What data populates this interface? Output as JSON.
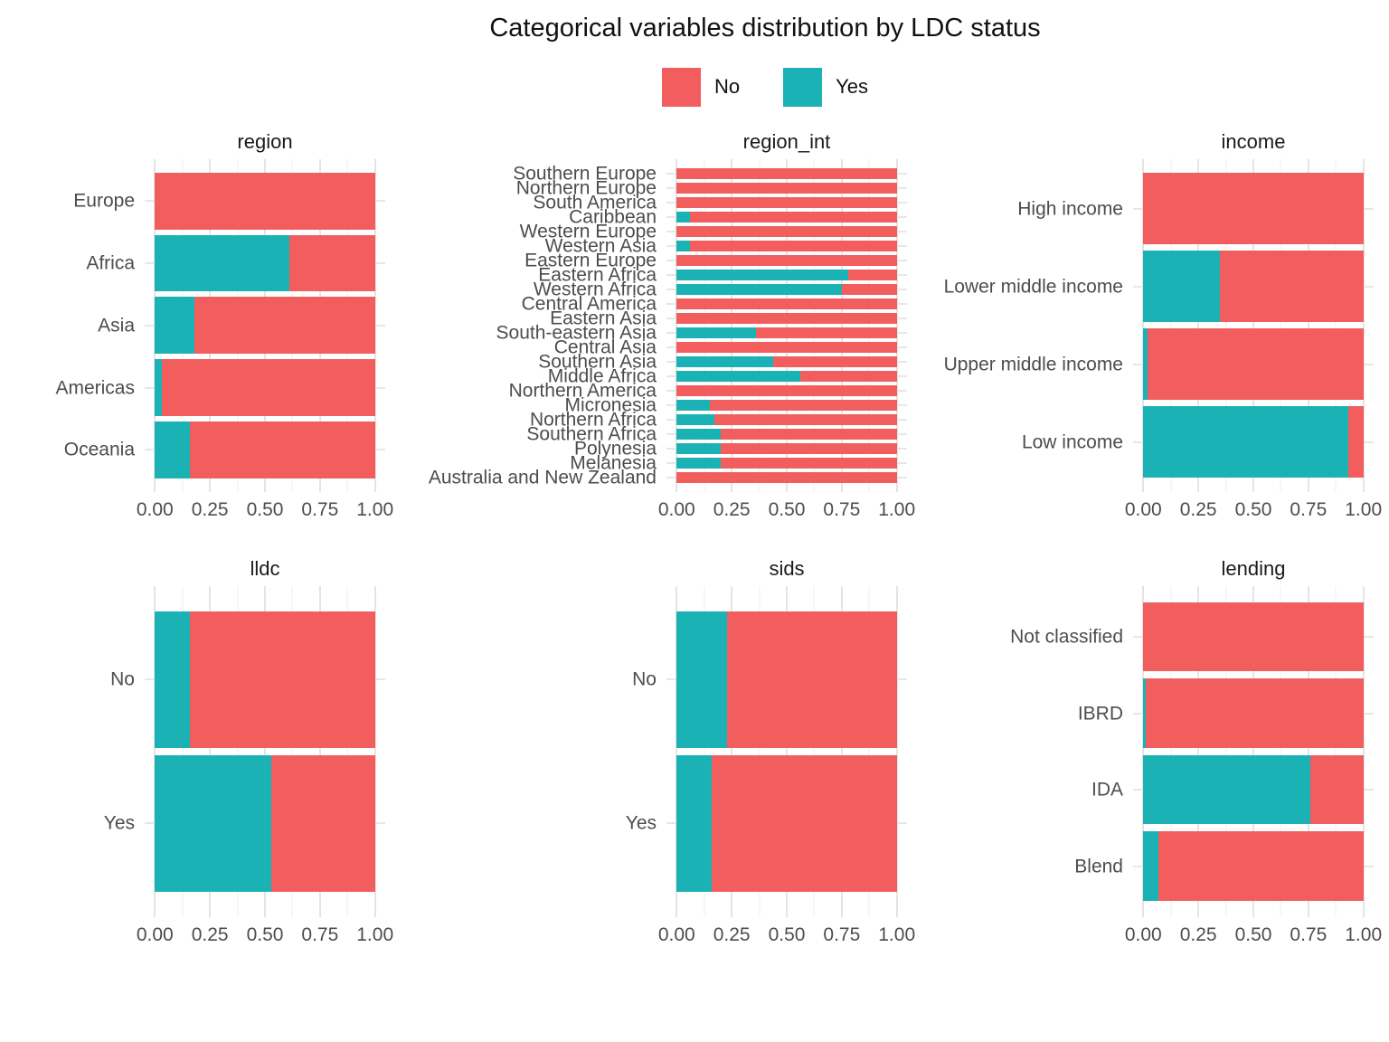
{
  "title": "Categorical variables distribution by LDC status",
  "legend": {
    "position": "top-center",
    "items": [
      {
        "label": "No",
        "color": "#F25E5E"
      },
      {
        "label": "Yes",
        "color": "#1AB2B5"
      }
    ]
  },
  "x_axis": {
    "ticks": [
      "0.00",
      "0.25",
      "0.50",
      "0.75",
      "1.00"
    ],
    "values": [
      0,
      0.25,
      0.5,
      0.75,
      1
    ],
    "range": [
      0,
      1
    ]
  },
  "style": {
    "background": "#FFFFFF",
    "major_gridline_color": "#E4E4E4",
    "minor_gridline_color": "#EFEFEF",
    "axis_text_color": "#4D4D4D"
  },
  "chart_data": [
    {
      "type": "bar",
      "orientation": "horizontal",
      "stacked": true,
      "normalized": true,
      "facet": "region",
      "xlim": [
        0,
        1
      ],
      "grid": true,
      "categories": [
        "Europe",
        "Africa",
        "Asia",
        "Americas",
        "Oceania"
      ],
      "series": [
        {
          "name": "Yes",
          "values": [
            0.0,
            0.61,
            0.18,
            0.03,
            0.16
          ]
        },
        {
          "name": "No",
          "values": [
            1.0,
            0.39,
            0.82,
            0.97,
            0.84
          ]
        }
      ]
    },
    {
      "type": "bar",
      "orientation": "horizontal",
      "stacked": true,
      "normalized": true,
      "facet": "region_int",
      "xlim": [
        0,
        1
      ],
      "grid": true,
      "categories": [
        "Southern Europe",
        "Northern Europe",
        "South America",
        "Caribbean",
        "Western Europe",
        "Western Asia",
        "Eastern Europe",
        "Eastern Africa",
        "Western Africa",
        "Central America",
        "Eastern Asia",
        "South-eastern Asia",
        "Central Asia",
        "Southern Asia",
        "Middle Africa",
        "Northern America",
        "Micronesia",
        "Northern Africa",
        "Southern Africa",
        "Polynesia",
        "Melanesia",
        "Australia and New Zealand"
      ],
      "series": [
        {
          "name": "Yes",
          "values": [
            0.0,
            0.0,
            0.0,
            0.06,
            0.0,
            0.06,
            0.0,
            0.78,
            0.75,
            0.0,
            0.0,
            0.36,
            0.0,
            0.44,
            0.56,
            0.0,
            0.15,
            0.17,
            0.2,
            0.2,
            0.2,
            0.0
          ]
        },
        {
          "name": "No",
          "values": [
            1.0,
            1.0,
            1.0,
            0.94,
            1.0,
            0.94,
            1.0,
            0.22,
            0.25,
            1.0,
            1.0,
            0.64,
            1.0,
            0.56,
            0.44,
            1.0,
            0.85,
            0.83,
            0.8,
            0.8,
            0.8,
            1.0
          ]
        }
      ]
    },
    {
      "type": "bar",
      "orientation": "horizontal",
      "stacked": true,
      "normalized": true,
      "facet": "income",
      "xlim": [
        0,
        1
      ],
      "grid": true,
      "categories": [
        "High income",
        "Lower middle income",
        "Upper middle income",
        "Low income"
      ],
      "series": [
        {
          "name": "Yes",
          "values": [
            0.0,
            0.35,
            0.02,
            0.93
          ]
        },
        {
          "name": "No",
          "values": [
            1.0,
            0.65,
            0.98,
            0.07
          ]
        }
      ]
    },
    {
      "type": "bar",
      "orientation": "horizontal",
      "stacked": true,
      "normalized": true,
      "facet": "lldc",
      "xlim": [
        0,
        1
      ],
      "grid": true,
      "categories": [
        "No",
        "Yes"
      ],
      "series": [
        {
          "name": "Yes",
          "values": [
            0.16,
            0.53
          ]
        },
        {
          "name": "No",
          "values": [
            0.84,
            0.47
          ]
        }
      ]
    },
    {
      "type": "bar",
      "orientation": "horizontal",
      "stacked": true,
      "normalized": true,
      "facet": "sids",
      "xlim": [
        0,
        1
      ],
      "grid": true,
      "categories": [
        "No",
        "Yes"
      ],
      "series": [
        {
          "name": "Yes",
          "values": [
            0.23,
            0.16
          ]
        },
        {
          "name": "No",
          "values": [
            0.77,
            0.84
          ]
        }
      ]
    },
    {
      "type": "bar",
      "orientation": "horizontal",
      "stacked": true,
      "normalized": true,
      "facet": "lending",
      "xlim": [
        0,
        1
      ],
      "grid": true,
      "categories": [
        "Not classified",
        "IBRD",
        "IDA",
        "Blend"
      ],
      "series": [
        {
          "name": "Yes",
          "values": [
            0.0,
            0.01,
            0.76,
            0.07
          ]
        },
        {
          "name": "No",
          "values": [
            1.0,
            0.99,
            0.24,
            0.93
          ]
        }
      ]
    }
  ]
}
